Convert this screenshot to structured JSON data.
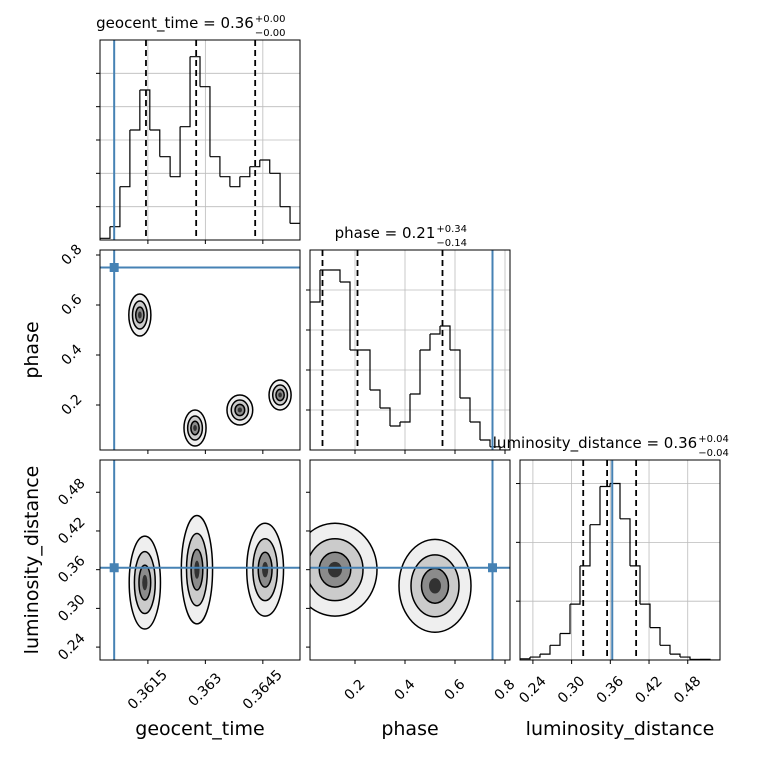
{
  "chart_data": {
    "type": "corner",
    "parameters": [
      {
        "label": "geocent_time",
        "title": "geocent_time = 0.36",
        "title_sup": "+0.00",
        "title_sub": "−0.00",
        "truth": 0.36062,
        "quantiles": [
          0.36145,
          0.36276,
          0.3643
        ],
        "lim": [
          0.36025,
          0.36547
        ],
        "ticks": [
          0.3615,
          0.363,
          0.3645
        ],
        "bins": [
          0.36025,
          0.36051,
          0.36077,
          0.36103,
          0.36129,
          0.36155,
          0.36181,
          0.36208,
          0.36234,
          0.3626,
          0.36286,
          0.36312,
          0.36338,
          0.36364,
          0.3639,
          0.36416,
          0.36442,
          0.36468,
          0.36495,
          0.36521,
          0.36547
        ],
        "counts": [
          0.05,
          0.4,
          1.6,
          3.3,
          4.5,
          3.3,
          2.5,
          1.9,
          3.4,
          5.5,
          4.6,
          2.5,
          1.9,
          1.6,
          1.9,
          2.2,
          2.4,
          2.0,
          1.0,
          0.5
        ],
        "hist_ylim": [
          0,
          6
        ],
        "hist_yticks": [
          1,
          2,
          3,
          4,
          5
        ]
      },
      {
        "label": "phase",
        "title": "phase = 0.21",
        "title_sup": "+0.34",
        "title_sub": "−0.14",
        "truth": 0.75,
        "quantiles": [
          0.07,
          0.21,
          0.55
        ],
        "lim": [
          0.02,
          0.82
        ],
        "ticks": [
          0.2,
          0.4,
          0.6,
          0.8
        ],
        "bins": [
          0.02,
          0.06,
          0.1,
          0.14,
          0.18,
          0.22,
          0.26,
          0.3,
          0.34,
          0.38,
          0.42,
          0.46,
          0.5,
          0.54,
          0.58,
          0.62,
          0.66,
          0.7,
          0.74,
          0.78,
          0.82
        ],
        "counts": [
          3.7,
          4.5,
          4.5,
          4.2,
          2.5,
          2.5,
          1.5,
          1.05,
          0.6,
          0.7,
          1.4,
          2.5,
          2.9,
          3.1,
          2.5,
          1.3,
          0.7,
          0.25,
          0.08,
          0
        ],
        "hist_ylim": [
          0,
          5
        ],
        "hist_yticks": [
          1,
          2,
          3,
          4
        ]
      },
      {
        "label": "luminosity_distance",
        "title": "luminosity_distance = 0.36",
        "title_sup": "+0.04",
        "title_sub": "−0.04",
        "truth": 0.363,
        "quantiles": [
          0.318,
          0.355,
          0.4
        ],
        "lim": [
          0.22,
          0.53
        ],
        "ticks": [
          0.24,
          {
            "value": 0.3,
            "label": "0.30"
          },
          0.36,
          0.42,
          0.48
        ],
        "bins": [
          0.22,
          0.2355,
          0.251,
          0.2665,
          0.282,
          0.2975,
          0.313,
          0.3285,
          0.344,
          0.3595,
          0.375,
          0.3905,
          0.406,
          0.4215,
          0.437,
          0.4525,
          0.468,
          0.4835,
          0.499,
          0.5145,
          0.53
        ],
        "counts": [
          0.02,
          0.05,
          0.1,
          0.25,
          0.45,
          0.95,
          1.6,
          2.3,
          2.95,
          3.0,
          2.4,
          1.6,
          0.95,
          0.55,
          0.25,
          0.1,
          0.05,
          0.01,
          0.01,
          0
        ],
        "hist_ylim": [
          0,
          3.4
        ],
        "hist_yticks": [
          1,
          2,
          3
        ]
      }
    ],
    "panels": [
      {
        "row": 1,
        "col": 0,
        "blobs": [
          {
            "x": 0.36129,
            "y": 0.56,
            "sx": 0.00012,
            "sy": 0.035
          },
          {
            "x": 0.36273,
            "y": 0.108,
            "sx": 0.00012,
            "sy": 0.03
          },
          {
            "x": 0.3639,
            "y": 0.18,
            "sx": 0.00014,
            "sy": 0.025
          },
          {
            "x": 0.36495,
            "y": 0.24,
            "sx": 0.00012,
            "sy": 0.025
          }
        ]
      },
      {
        "row": 2,
        "col": 0,
        "blobs": [
          {
            "x": 0.36142,
            "y": 0.34,
            "sx": 0.00017,
            "sy": 0.03
          },
          {
            "x": 0.36278,
            "y": 0.36,
            "sx": 0.00017,
            "sy": 0.035
          },
          {
            "x": 0.36456,
            "y": 0.36,
            "sx": 0.0002,
            "sy": 0.03
          }
        ]
      },
      {
        "row": 2,
        "col": 1,
        "blobs": [
          {
            "x": 0.12,
            "y": 0.36,
            "sx": 0.07,
            "sy": 0.03
          },
          {
            "x": 0.52,
            "y": 0.335,
            "sx": 0.06,
            "sy": 0.03
          }
        ]
      }
    ],
    "truth_color": "#4682b4",
    "hist_grid": true
  }
}
